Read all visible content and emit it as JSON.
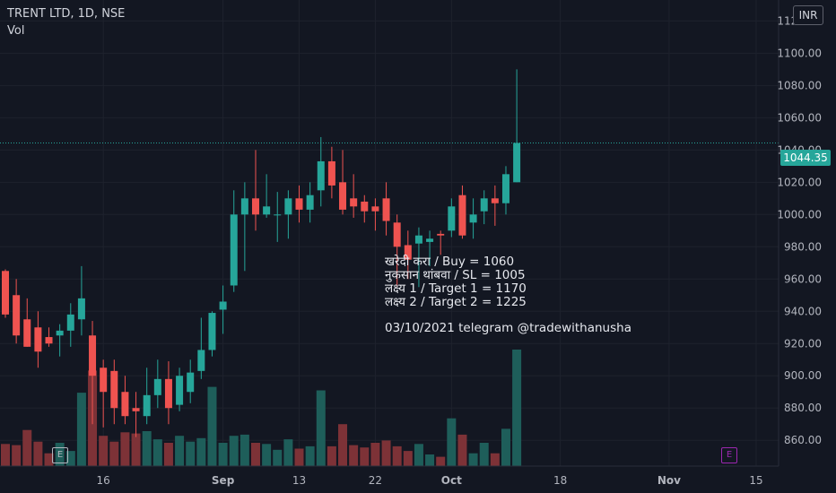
{
  "legend": {
    "symbol": "TRENT LTD, 1D, NSE",
    "vol_label": "Vol"
  },
  "currency": "INR",
  "last_price_label": "1044.35",
  "price_ticks": [
    "1120.00",
    "1100.00",
    "1080.00",
    "1060.00",
    "1040.00",
    "1020.00",
    "1000.00",
    "980.00",
    "960.00",
    "940.00",
    "920.00",
    "900.00",
    "880.00",
    "860.00"
  ],
  "date_ticks": [
    "16",
    "Sep",
    "13",
    "22",
    "Oct",
    "18",
    "Nov",
    "15"
  ],
  "annotation": {
    "lines": [
      "खरेदी करा / Buy = 1060",
      "नुकसान थांबवा / SL = 1005",
      "लक्ष्य 1 / Target 1 = 1170",
      "लक्ष्य 2 / Target 2 = 1225"
    ],
    "signature": "03/10/2021 telegram @tradewithanusha"
  },
  "event_markers": [
    {
      "label": "E",
      "color": "#b2b5be"
    },
    {
      "label": "E",
      "color": "#9c27b0"
    }
  ],
  "colors": {
    "up": "#26a69a",
    "down": "#ef5350",
    "up_volume": "#1e5e5a",
    "down_volume": "#7d3237",
    "background": "#131722"
  },
  "chart_data": {
    "type": "candlestick",
    "symbol": "TRENT LTD",
    "interval": "1D",
    "exchange": "NSE",
    "ylim": [
      844,
      1133
    ],
    "last_price": 1044.35,
    "candles": [
      {
        "o": 965,
        "h": 966,
        "c": 938,
        "l": 936,
        "v": 0.19
      },
      {
        "o": 950,
        "h": 960,
        "c": 925,
        "l": 920,
        "v": 0.18
      },
      {
        "o": 935,
        "h": 948,
        "c": 918,
        "l": 918,
        "v": 0.31
      },
      {
        "o": 930,
        "h": 940,
        "c": 915,
        "l": 905,
        "v": 0.21
      },
      {
        "o": 924,
        "h": 930,
        "c": 920,
        "l": 918,
        "v": 0.11
      },
      {
        "o": 925,
        "h": 932,
        "c": 928,
        "l": 912,
        "v": 0.2
      },
      {
        "o": 928,
        "h": 945,
        "c": 938,
        "l": 918,
        "v": 0.13
      },
      {
        "o": 935,
        "h": 968,
        "c": 948,
        "l": 925,
        "v": 0.63
      },
      {
        "o": 925,
        "h": 934,
        "c": 900,
        "l": 870,
        "v": 0.82
      },
      {
        "o": 905,
        "h": 910,
        "c": 890,
        "l": 868,
        "v": 0.26
      },
      {
        "o": 903,
        "h": 910,
        "c": 880,
        "l": 870,
        "v": 0.21
      },
      {
        "o": 890,
        "h": 900,
        "c": 875,
        "l": 870,
        "v": 0.29
      },
      {
        "o": 880,
        "h": 890,
        "c": 878,
        "l": 862,
        "v": 0.28
      },
      {
        "o": 875,
        "h": 905,
        "c": 888,
        "l": 870,
        "v": 0.3
      },
      {
        "o": 888,
        "h": 910,
        "c": 898,
        "l": 880,
        "v": 0.23
      },
      {
        "o": 898,
        "h": 909,
        "c": 880,
        "l": 870,
        "v": 0.2
      },
      {
        "o": 882,
        "h": 905,
        "c": 900,
        "l": 878,
        "v": 0.26
      },
      {
        "o": 890,
        "h": 910,
        "c": 902,
        "l": 883,
        "v": 0.21
      },
      {
        "o": 903,
        "h": 936,
        "c": 916,
        "l": 898,
        "v": 0.24
      },
      {
        "o": 916,
        "h": 940,
        "c": 939,
        "l": 912,
        "v": 0.68
      },
      {
        "o": 941,
        "h": 956,
        "c": 946,
        "l": 926,
        "v": 0.2
      },
      {
        "o": 956,
        "h": 1015,
        "c": 1000,
        "l": 952,
        "v": 0.26
      },
      {
        "o": 1000,
        "h": 1020,
        "c": 1010,
        "l": 965,
        "v": 0.27
      },
      {
        "o": 1010,
        "h": 1040,
        "c": 1000,
        "l": 990,
        "v": 0.2
      },
      {
        "o": 1000,
        "h": 1025,
        "c": 1005,
        "l": 998,
        "v": 0.19
      },
      {
        "o": 1000,
        "h": 1014,
        "c": 1000,
        "l": 983,
        "v": 0.14
      },
      {
        "o": 1000,
        "h": 1015,
        "c": 1010,
        "l": 985,
        "v": 0.23
      },
      {
        "o": 1010,
        "h": 1018,
        "c": 1003,
        "l": 995,
        "v": 0.15
      },
      {
        "o": 1003,
        "h": 1020,
        "c": 1012,
        "l": 995,
        "v": 0.17
      },
      {
        "o": 1015,
        "h": 1048,
        "c": 1033,
        "l": 1005,
        "v": 0.65
      },
      {
        "o": 1033,
        "h": 1042,
        "c": 1018,
        "l": 1010,
        "v": 0.17
      },
      {
        "o": 1020,
        "h": 1040,
        "c": 1003,
        "l": 1000,
        "v": 0.36
      },
      {
        "o": 1010,
        "h": 1025,
        "c": 1005,
        "l": 998,
        "v": 0.18
      },
      {
        "o": 1008,
        "h": 1012,
        "c": 1002,
        "l": 995,
        "v": 0.16
      },
      {
        "o": 1005,
        "h": 1010,
        "c": 1002,
        "l": 990,
        "v": 0.2
      },
      {
        "o": 1010,
        "h": 1020,
        "c": 996,
        "l": 987,
        "v": 0.22
      },
      {
        "o": 995,
        "h": 1000,
        "c": 980,
        "l": 955,
        "v": 0.17
      },
      {
        "o": 981,
        "h": 990,
        "c": 972,
        "l": 960,
        "v": 0.13
      },
      {
        "o": 982,
        "h": 992,
        "c": 987,
        "l": 955,
        "v": 0.19
      },
      {
        "o": 983,
        "h": 990,
        "c": 985,
        "l": 968,
        "v": 0.1
      },
      {
        "o": 988,
        "h": 990,
        "c": 987,
        "l": 975,
        "v": 0.08
      },
      {
        "o": 990,
        "h": 1010,
        "c": 1005,
        "l": 986,
        "v": 0.41
      },
      {
        "o": 1012,
        "h": 1018,
        "c": 987,
        "l": 985,
        "v": 0.27
      },
      {
        "o": 995,
        "h": 1010,
        "c": 1000,
        "l": 985,
        "v": 0.11
      },
      {
        "o": 1002,
        "h": 1015,
        "c": 1010,
        "l": 994,
        "v": 0.2
      },
      {
        "o": 1010,
        "h": 1018,
        "c": 1007,
        "l": 993,
        "v": 0.11
      },
      {
        "o": 1007,
        "h": 1030,
        "c": 1025,
        "l": 1000,
        "v": 0.32
      },
      {
        "o": 1020,
        "h": 1090,
        "c": 1044.35,
        "l": 1020,
        "v": 1.0
      }
    ]
  }
}
